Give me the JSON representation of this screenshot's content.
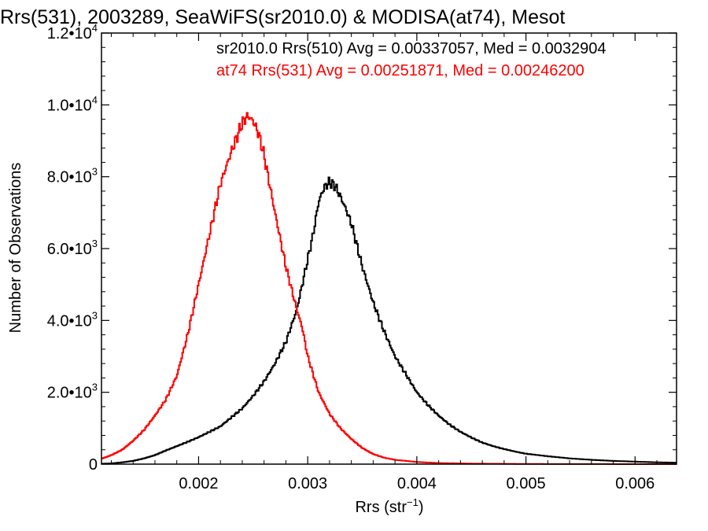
{
  "chart_data": {
    "type": "line",
    "title": "Rrs(531), 2003289, SeaWiFS(sr2010.0) & MODISA(at74), Mesot",
    "xlabel": "Rrs (str",
    "xlabel_sup": "−1",
    "xlabel_close": ")",
    "ylabel": "Number of Observations",
    "xlim": [
      0.00111,
      0.00638
    ],
    "ylim": [
      0,
      12000
    ],
    "grid": false,
    "legend_placement": "top-right",
    "x_ticks": [
      {
        "value": 0.002,
        "label": "0.002"
      },
      {
        "value": 0.003,
        "label": "0.003"
      },
      {
        "value": 0.004,
        "label": "0.004"
      },
      {
        "value": 0.005,
        "label": "0.005"
      },
      {
        "value": 0.006,
        "label": "0.006"
      }
    ],
    "y_ticks": [
      {
        "value": 0,
        "mantissa": "0",
        "exp": ""
      },
      {
        "value": 2000,
        "mantissa": "2.0•10",
        "exp": "3"
      },
      {
        "value": 4000,
        "mantissa": "4.0•10",
        "exp": "3"
      },
      {
        "value": 6000,
        "mantissa": "6.0•10",
        "exp": "3"
      },
      {
        "value": 8000,
        "mantissa": "8.0•10",
        "exp": "3"
      },
      {
        "value": 10000,
        "mantissa": "1.0•10",
        "exp": "4"
      },
      {
        "value": 12000,
        "mantissa": "1.2•10",
        "exp": "4"
      }
    ],
    "series": [
      {
        "name": "sr2010.0 Rrs(510) Avg = 0.00337057, Med = 0.0032904",
        "color": "#000000",
        "points": [
          [
            0.00111,
            10
          ],
          [
            0.0012,
            20
          ],
          [
            0.0013,
            50
          ],
          [
            0.0014,
            90
          ],
          [
            0.0015,
            160
          ],
          [
            0.0016,
            250
          ],
          [
            0.0017,
            380
          ],
          [
            0.0018,
            500
          ],
          [
            0.0019,
            620
          ],
          [
            0.002,
            750
          ],
          [
            0.0021,
            900
          ],
          [
            0.0022,
            1050
          ],
          [
            0.0023,
            1300
          ],
          [
            0.0024,
            1550
          ],
          [
            0.0025,
            1900
          ],
          [
            0.0026,
            2300
          ],
          [
            0.0027,
            2800
          ],
          [
            0.0028,
            3400
          ],
          [
            0.0029,
            4300
          ],
          [
            0.003,
            5700
          ],
          [
            0.00305,
            6400
          ],
          [
            0.0031,
            7300
          ],
          [
            0.00315,
            7700
          ],
          [
            0.0032,
            7850
          ],
          [
            0.00325,
            7750
          ],
          [
            0.0033,
            7450
          ],
          [
            0.00335,
            7100
          ],
          [
            0.0034,
            6700
          ],
          [
            0.00345,
            6100
          ],
          [
            0.0035,
            5500
          ],
          [
            0.00355,
            5000
          ],
          [
            0.0036,
            4500
          ],
          [
            0.0037,
            3700
          ],
          [
            0.0038,
            3000
          ],
          [
            0.0039,
            2500
          ],
          [
            0.004,
            2000
          ],
          [
            0.0041,
            1650
          ],
          [
            0.0042,
            1350
          ],
          [
            0.0043,
            1100
          ],
          [
            0.0044,
            900
          ],
          [
            0.0045,
            740
          ],
          [
            0.0046,
            600
          ],
          [
            0.0047,
            500
          ],
          [
            0.0048,
            420
          ],
          [
            0.0049,
            350
          ],
          [
            0.005,
            290
          ],
          [
            0.0052,
            220
          ],
          [
            0.0054,
            160
          ],
          [
            0.0056,
            120
          ],
          [
            0.0058,
            90
          ],
          [
            0.006,
            70
          ],
          [
            0.0062,
            50
          ],
          [
            0.00638,
            40
          ]
        ]
      },
      {
        "name": "at74 Rrs(531) Avg = 0.00251871, Med = 0.00246200",
        "color": "#ff0000",
        "points": [
          [
            0.00111,
            150
          ],
          [
            0.0012,
            250
          ],
          [
            0.0013,
            400
          ],
          [
            0.0014,
            650
          ],
          [
            0.0015,
            950
          ],
          [
            0.0016,
            1350
          ],
          [
            0.0017,
            1800
          ],
          [
            0.0018,
            2450
          ],
          [
            0.0019,
            3600
          ],
          [
            0.002,
            5000
          ],
          [
            0.0021,
            6400
          ],
          [
            0.0022,
            7800
          ],
          [
            0.0023,
            8700
          ],
          [
            0.00235,
            9100
          ],
          [
            0.0024,
            9500
          ],
          [
            0.00245,
            9700
          ],
          [
            0.0025,
            9550
          ],
          [
            0.00255,
            9200
          ],
          [
            0.0026,
            8600
          ],
          [
            0.00265,
            7800
          ],
          [
            0.0027,
            7000
          ],
          [
            0.0028,
            5500
          ],
          [
            0.0029,
            4300
          ],
          [
            0.00295,
            3800
          ],
          [
            0.003,
            3000
          ],
          [
            0.0031,
            2000
          ],
          [
            0.0032,
            1400
          ],
          [
            0.0033,
            1000
          ],
          [
            0.0034,
            700
          ],
          [
            0.0035,
            450
          ],
          [
            0.0036,
            280
          ],
          [
            0.0037,
            180
          ],
          [
            0.0038,
            120
          ],
          [
            0.004,
            60
          ],
          [
            0.0042,
            30
          ],
          [
            0.0045,
            15
          ],
          [
            0.005,
            5
          ],
          [
            0.0055,
            2
          ],
          [
            0.00638,
            0
          ]
        ]
      }
    ]
  }
}
